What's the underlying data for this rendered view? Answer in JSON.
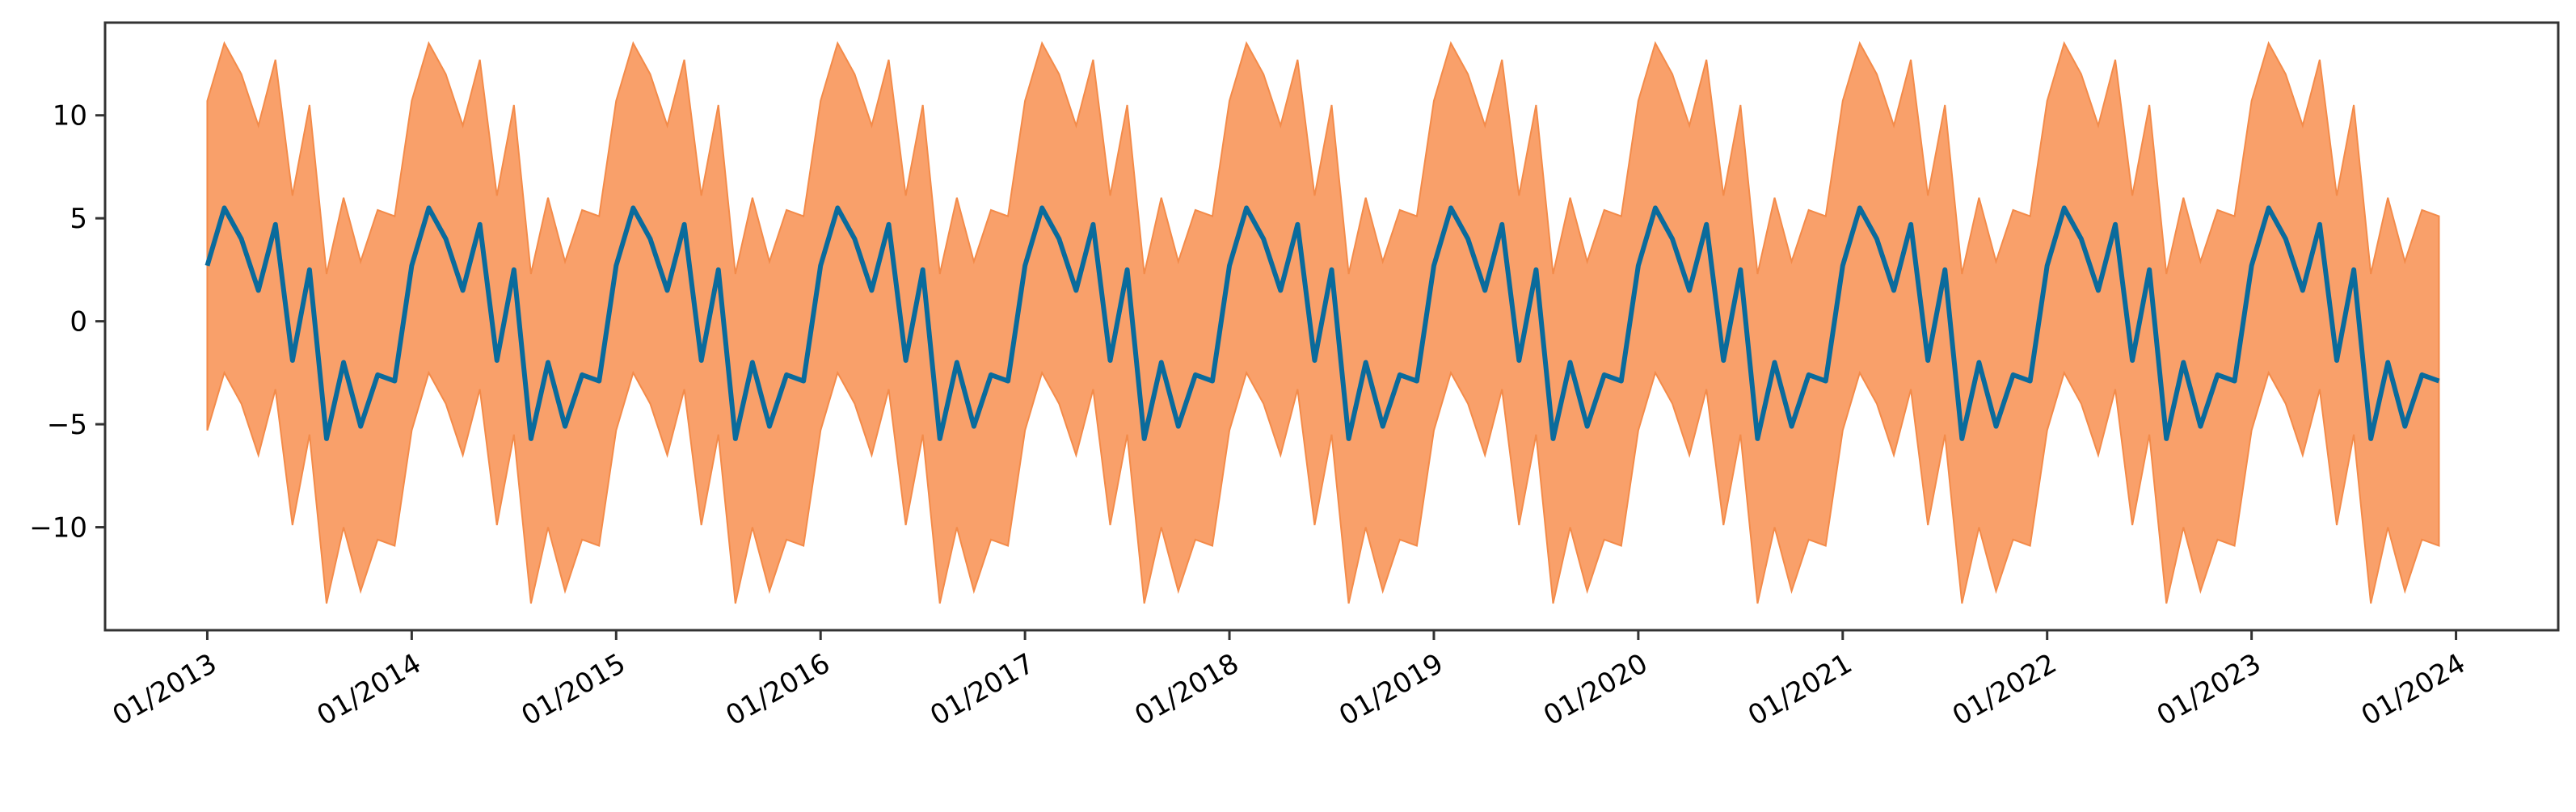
{
  "chart_data": {
    "type": "line",
    "title": "",
    "xlabel": "",
    "ylabel": "",
    "grid": false,
    "legend": "none",
    "x_start": "01/2013",
    "x_end": "12/2023",
    "x_ticks": [
      "01/2013",
      "01/2014",
      "01/2015",
      "01/2016",
      "01/2017",
      "01/2018",
      "01/2019",
      "01/2020",
      "01/2021",
      "01/2022",
      "01/2023",
      "01/2024"
    ],
    "y_ticks": [
      10,
      5,
      0,
      -5,
      -10
    ],
    "xlim": [
      "07/2012",
      "07/2024"
    ],
    "ylim": [
      -15,
      14.5
    ],
    "band_offset": [
      -8,
      8
    ],
    "monthly_pattern": [
      2.7,
      5.5,
      4.0,
      1.5,
      4.7,
      -1.9,
      2.5,
      -5.7,
      -2.0,
      -5.1,
      -2.6,
      -2.9
    ],
    "series": [
      {
        "values_pattern": "monthly_pattern",
        "color": "#0a6b9c"
      }
    ],
    "band": {
      "color": "#f9a06a",
      "edge_color": "#f38b4a"
    }
  }
}
